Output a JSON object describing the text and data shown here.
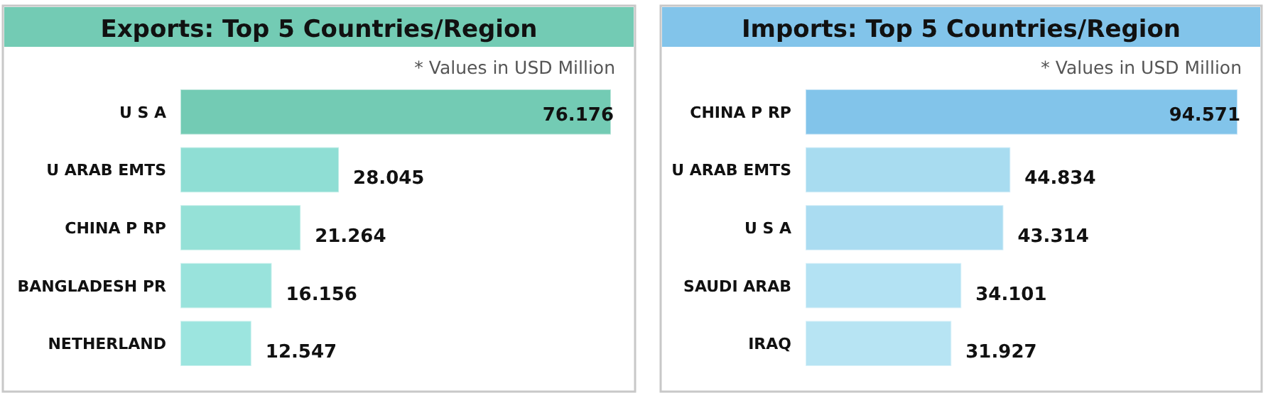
{
  "chart_data": [
    {
      "type": "bar",
      "orientation": "horizontal",
      "title": "Exports: Top 5 Countries/Region",
      "subtitle": "* Values in USD Million",
      "categories": [
        "U S A",
        "U ARAB EMTS",
        "CHINA P RP",
        "BANGLADESH PR",
        "NETHERLAND"
      ],
      "values": [
        76.176,
        28.045,
        21.264,
        16.156,
        12.547
      ],
      "colors": [
        "#73cbb4",
        "#8fded4",
        "#95e1d7",
        "#99e3dc",
        "#9ce5df"
      ],
      "data_labels": true
    },
    {
      "type": "bar",
      "orientation": "horizontal",
      "title": "Imports: Top 5 Countries/Region",
      "subtitle": "* Values in USD Million",
      "categories": [
        "CHINA P RP",
        "U ARAB EMTS",
        "U S A",
        "SAUDI ARAB",
        "IRAQ"
      ],
      "values": [
        94.571,
        44.834,
        43.314,
        34.101,
        31.927
      ],
      "colors": [
        "#82c4ea",
        "#a8dcf0",
        "#aadcf1",
        "#b3e2f3",
        "#b7e4f3"
      ],
      "data_labels": true
    }
  ]
}
